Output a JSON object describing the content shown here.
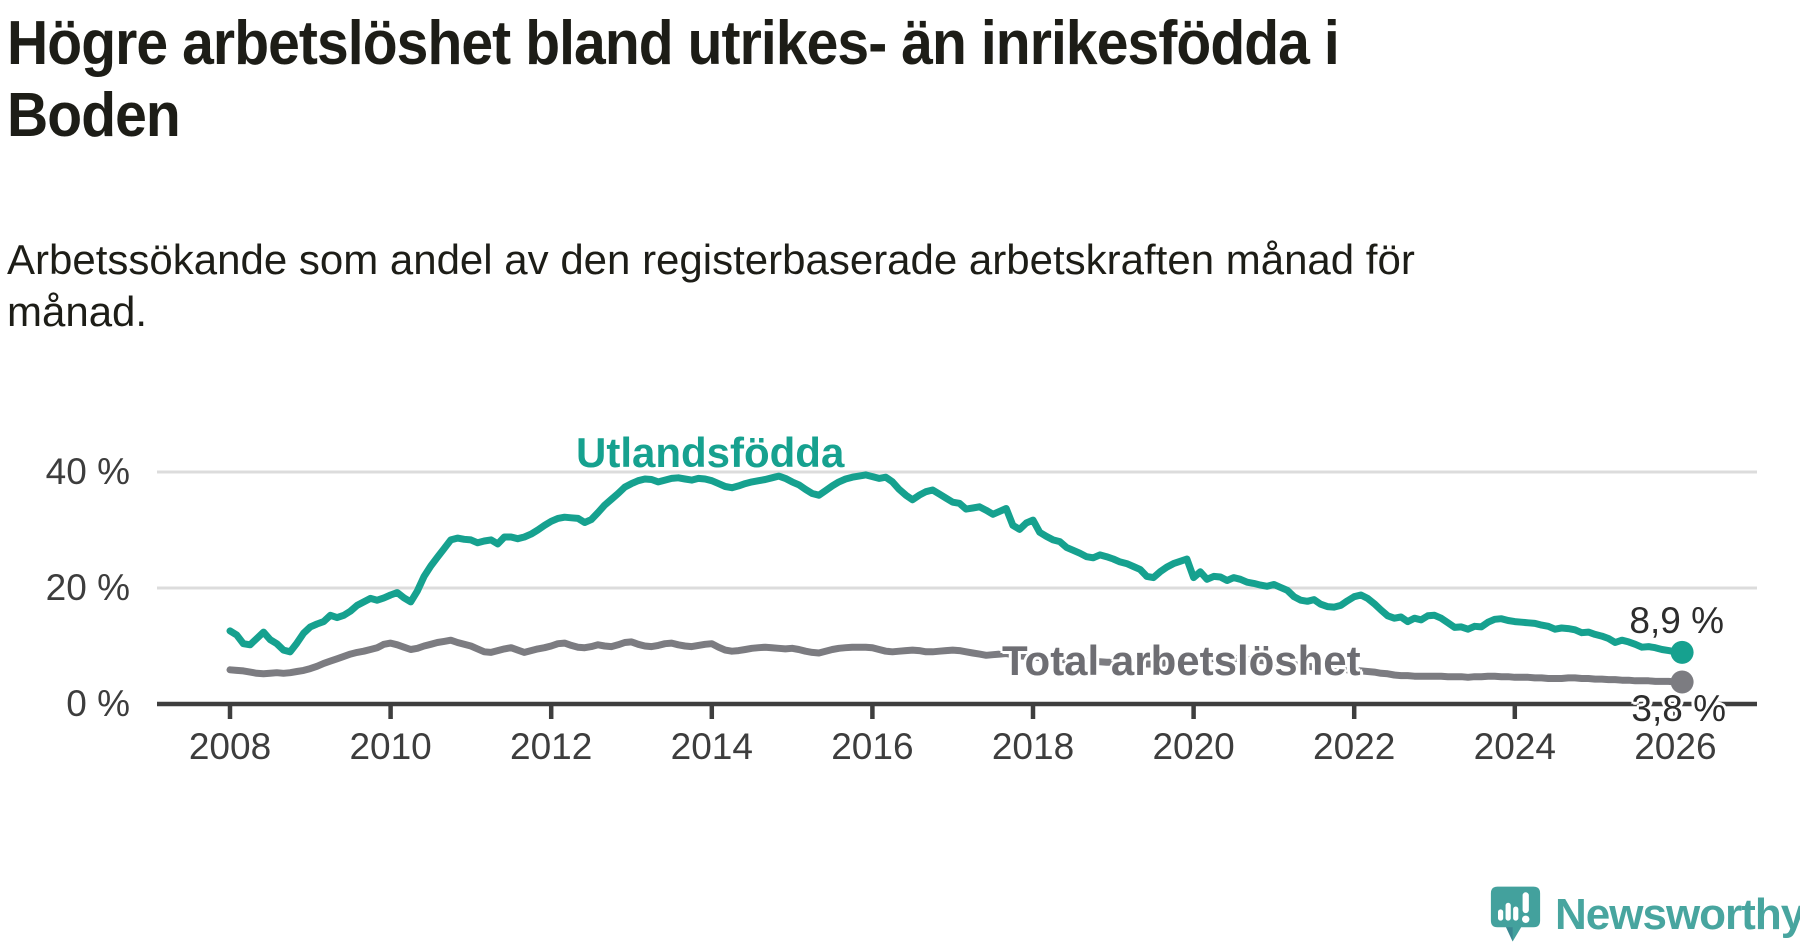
{
  "title": "Högre arbetslöshet bland utrikes- än inrikesfödda i Boden",
  "title_lines": [
    "Högre arbetslöshet bland utrikes- än inrikesfödda i",
    "Boden"
  ],
  "subtitle": "Arbetssökande som andel av den registerbaserade arbetskraften månad för månad.",
  "subtitle_lines": [
    "Arbetssökande som andel av den registerbaserade arbetskraften månad för",
    "månad."
  ],
  "colors": {
    "accent_teal": "#16a18f",
    "line_gray": "#7c7c81",
    "axis": "#3e3e3e",
    "grid": "#dcdcdc",
    "tick_text": "#3d3d3d",
    "text_dark": "#1d1d17",
    "series_label_gray": "#6e6e73",
    "logo_teal": "#48a59f",
    "logo_icon_teal": "#43a19d"
  },
  "branding": {
    "logo_text": "Newsworthy",
    "logo_icon": "newsworthy-speech-bubble-bar-chart-icon"
  },
  "chart_data": {
    "type": "line",
    "frequency": "monthly",
    "x_start": "2008-01",
    "x_end": "2026-02",
    "grid": "horizontal",
    "legend_position": "labels-on-lines",
    "x_axis": {
      "ticks": [
        2008,
        2010,
        2012,
        2014,
        2016,
        2018,
        2020,
        2022,
        2024,
        2026
      ]
    },
    "y_axis": {
      "range": [
        0,
        44
      ],
      "ticks": [
        {
          "value": 0,
          "label": "0 %"
        },
        {
          "value": 20,
          "label": "20 %"
        },
        {
          "value": 40,
          "label": "40 %"
        }
      ]
    },
    "series": [
      {
        "name": "Utlandsfödda",
        "color": "#16a18f",
        "end_label": "8,9 %",
        "end_value": 8.9,
        "values": [
          12.6,
          11.9,
          10.4,
          10.2,
          11.3,
          12.4,
          11.1,
          10.4,
          9.3,
          9.0,
          10.5,
          12.2,
          13.3,
          13.8,
          14.2,
          15.3,
          14.9,
          15.3,
          16.0,
          17.0,
          17.6,
          18.2,
          17.9,
          18.3,
          18.8,
          19.2,
          18.3,
          17.6,
          19.5,
          22.0,
          23.8,
          25.3,
          26.8,
          28.3,
          28.6,
          28.4,
          28.3,
          27.8,
          28.1,
          28.3,
          27.6,
          28.8,
          28.8,
          28.5,
          28.8,
          29.3,
          30.0,
          30.8,
          31.5,
          32.0,
          32.2,
          32.1,
          32.0,
          31.3,
          31.8,
          33.0,
          34.3,
          35.3,
          36.3,
          37.4,
          38.0,
          38.5,
          38.8,
          38.7,
          38.3,
          38.6,
          38.9,
          39.0,
          38.8,
          38.6,
          38.9,
          38.8,
          38.5,
          38.0,
          37.5,
          37.3,
          37.6,
          38.0,
          38.3,
          38.5,
          38.7,
          39.0,
          39.3,
          38.9,
          38.3,
          37.8,
          37.0,
          36.3,
          36.0,
          36.8,
          37.6,
          38.3,
          38.8,
          39.1,
          39.3,
          39.5,
          39.2,
          38.9,
          39.1,
          38.3,
          37.0,
          36.0,
          35.2,
          36.0,
          36.6,
          36.9,
          36.2,
          35.5,
          34.8,
          34.6,
          33.6,
          33.8,
          34.0,
          33.4,
          32.7,
          33.2,
          33.7,
          30.8,
          30.1,
          31.2,
          31.7,
          29.6,
          28.9,
          28.3,
          28.0,
          27.0,
          26.5,
          26.0,
          25.4,
          25.2,
          25.7,
          25.4,
          25.0,
          24.5,
          24.2,
          23.7,
          23.2,
          22.0,
          21.8,
          22.8,
          23.6,
          24.2,
          24.6,
          25.0,
          21.8,
          22.8,
          21.5,
          22.0,
          21.9,
          21.3,
          21.8,
          21.5,
          21.0,
          20.8,
          20.5,
          20.3,
          20.6,
          20.1,
          19.6,
          18.5,
          17.9,
          17.7,
          18.0,
          17.2,
          16.8,
          16.7,
          17.0,
          17.8,
          18.5,
          18.8,
          18.2,
          17.3,
          16.2,
          15.2,
          14.8,
          15.0,
          14.2,
          14.8,
          14.5,
          15.2,
          15.3,
          14.8,
          14.0,
          13.2,
          13.3,
          12.9,
          13.4,
          13.3,
          14.1,
          14.6,
          14.7,
          14.4,
          14.2,
          14.1,
          14.0,
          13.9,
          13.6,
          13.4,
          12.9,
          13.1,
          13.0,
          12.8,
          12.3,
          12.4,
          12.0,
          11.7,
          11.3,
          10.6,
          11.0,
          10.7,
          10.3,
          9.8,
          9.9,
          9.7,
          9.4,
          9.2,
          9.0,
          8.9
        ]
      },
      {
        "name": "Total arbetslöshet",
        "color": "#7c7c81",
        "end_label": "3,8 %",
        "end_value": 3.8,
        "values": [
          5.9,
          5.8,
          5.7,
          5.5,
          5.3,
          5.2,
          5.3,
          5.4,
          5.3,
          5.4,
          5.6,
          5.8,
          6.1,
          6.5,
          7.0,
          7.4,
          7.8,
          8.2,
          8.6,
          8.9,
          9.1,
          9.4,
          9.7,
          10.3,
          10.5,
          10.2,
          9.8,
          9.4,
          9.6,
          10.0,
          10.3,
          10.6,
          10.8,
          11.0,
          10.6,
          10.3,
          10.0,
          9.5,
          9.0,
          8.9,
          9.2,
          9.5,
          9.7,
          9.3,
          8.9,
          9.2,
          9.5,
          9.7,
          10.0,
          10.4,
          10.5,
          10.1,
          9.8,
          9.7,
          9.9,
          10.2,
          10.0,
          9.9,
          10.2,
          10.6,
          10.7,
          10.3,
          10.0,
          9.9,
          10.1,
          10.4,
          10.5,
          10.2,
          10.0,
          9.9,
          10.1,
          10.3,
          10.4,
          9.8,
          9.3,
          9.1,
          9.2,
          9.4,
          9.6,
          9.7,
          9.8,
          9.7,
          9.6,
          9.5,
          9.6,
          9.4,
          9.1,
          8.9,
          8.8,
          9.1,
          9.4,
          9.6,
          9.7,
          9.8,
          9.8,
          9.8,
          9.7,
          9.4,
          9.1,
          9.0,
          9.1,
          9.2,
          9.3,
          9.2,
          9.0,
          9.0,
          9.1,
          9.2,
          9.3,
          9.2,
          9.0,
          8.8,
          8.6,
          8.4,
          8.5,
          8.6,
          8.7,
          8.5,
          8.3,
          8.2,
          8.1,
          8.0,
          7.9,
          7.8,
          7.7,
          7.6,
          7.5,
          7.4,
          7.4,
          7.3,
          7.3,
          7.2,
          7.2,
          7.1,
          7.1,
          7.0,
          7.0,
          6.9,
          6.9,
          7.0,
          7.1,
          7.2,
          7.3,
          7.4,
          7.2,
          7.3,
          7.6,
          7.9,
          8.0,
          8.0,
          7.9,
          7.8,
          7.7,
          7.6,
          7.5,
          7.4,
          7.3,
          7.2,
          7.0,
          6.8,
          6.6,
          6.5,
          6.4,
          6.3,
          6.2,
          6.1,
          6.0,
          5.9,
          5.8,
          5.7,
          5.6,
          5.5,
          5.3,
          5.2,
          5.0,
          4.9,
          4.9,
          4.8,
          4.8,
          4.8,
          4.8,
          4.8,
          4.7,
          4.7,
          4.7,
          4.6,
          4.7,
          4.7,
          4.8,
          4.8,
          4.7,
          4.7,
          4.6,
          4.6,
          4.6,
          4.5,
          4.5,
          4.4,
          4.4,
          4.4,
          4.5,
          4.5,
          4.4,
          4.4,
          4.3,
          4.3,
          4.2,
          4.2,
          4.1,
          4.1,
          4.0,
          4.0,
          4.0,
          3.9,
          3.9,
          3.9,
          3.8,
          3.8
        ]
      }
    ]
  }
}
